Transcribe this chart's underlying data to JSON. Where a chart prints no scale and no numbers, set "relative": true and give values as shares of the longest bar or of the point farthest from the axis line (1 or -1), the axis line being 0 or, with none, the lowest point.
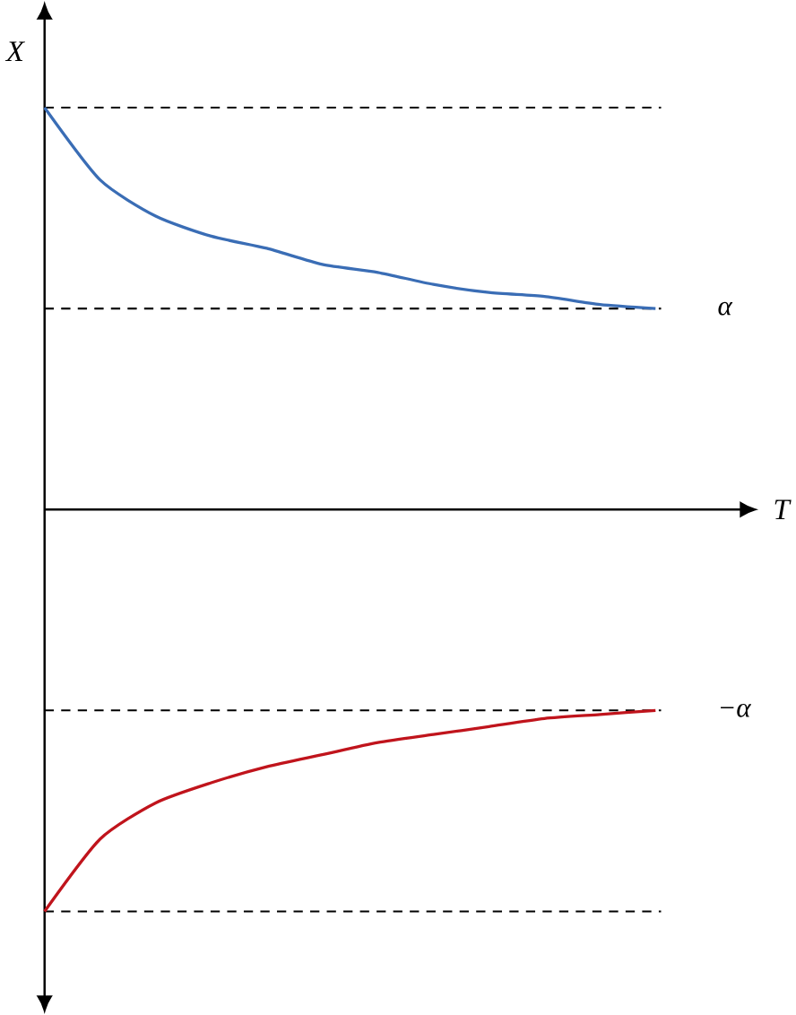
{
  "chart_data": {
    "type": "line",
    "relative": true,
    "xlabel": "T",
    "ylabel": "X",
    "categories": [
      null,
      null,
      null,
      null,
      null,
      null,
      null,
      null,
      null,
      null,
      null,
      null
    ],
    "series": [
      {
        "color": "#3a6db5",
        "values": [
          1.0,
          0.82,
          0.73,
          0.68,
          0.65,
          0.61,
          0.59,
          0.56,
          0.54,
          0.53,
          0.51,
          0.5
        ]
      },
      {
        "color": "#c0141c",
        "values": [
          -1.0,
          -0.82,
          -0.73,
          -0.68,
          -0.64,
          -0.61,
          -0.58,
          -0.56,
          -0.54,
          -0.52,
          -0.51,
          -0.5
        ]
      }
    ],
    "ref_lines": [
      {
        "axis": "y",
        "value": 1.0,
        "line_style": "dashed"
      },
      {
        "axis": "y",
        "value": 0.5,
        "label": "α",
        "line_style": "dashed"
      },
      {
        "axis": "y",
        "value": -0.5,
        "label": "−α",
        "line_style": "dashed"
      },
      {
        "axis": "y",
        "value": -1.0,
        "line_style": "dashed"
      }
    ]
  }
}
